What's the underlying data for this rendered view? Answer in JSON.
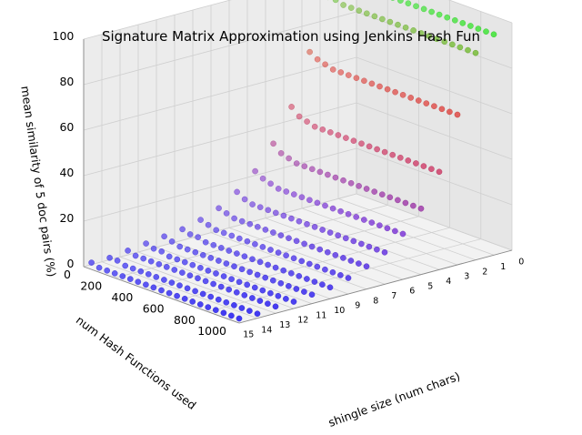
{
  "chart_data": {
    "type": "scatter",
    "projection": "3d",
    "title": "Signature Matrix Approximation using Jenkins Hash Fun",
    "xlabel": "shingle size (num chars)",
    "ylabel": "num Hash Functions used",
    "zlabel": "mean similarity of 5 doc pairs (%)",
    "x_ticks": [
      "0",
      "1",
      "2",
      "3",
      "4",
      "5",
      "6",
      "7",
      "8",
      "9",
      "10",
      "11",
      "12",
      "13",
      "14",
      "15"
    ],
    "y_ticks": [
      "0",
      "200",
      "400",
      "600",
      "800",
      "1000"
    ],
    "z_ticks": [
      "0",
      "20",
      "40",
      "60",
      "80",
      "100"
    ],
    "xlim": [
      0,
      15
    ],
    "ylim": [
      0,
      1000
    ],
    "zlim": [
      0,
      100
    ],
    "grid": true,
    "legend": "none",
    "color_encoding": "color shifts from green (high similarity) through red/purple to blue (low similarity)",
    "hash_function_counts": [
      50,
      100,
      150,
      200,
      250,
      300,
      350,
      400,
      450,
      500,
      550,
      600,
      650,
      700,
      750,
      800,
      850,
      900,
      950,
      1000
    ],
    "series": [
      {
        "shingle_size": 1,
        "similarity": [
          98,
          97,
          97,
          97,
          97,
          97,
          97,
          97,
          97,
          97,
          97,
          97,
          97,
          97,
          97,
          97,
          97,
          97,
          97,
          97
        ]
      },
      {
        "shingle_size": 2,
        "similarity": [
          92,
          92,
          91,
          91,
          91,
          91,
          91,
          91,
          91,
          91,
          91,
          91,
          91,
          91,
          91,
          91,
          91,
          91,
          91,
          91
        ]
      },
      {
        "shingle_size": 3,
        "similarity": [
          70,
          68,
          67,
          66,
          66,
          66,
          66,
          66,
          66,
          66,
          66,
          66,
          66,
          66,
          66,
          66,
          66,
          66,
          66,
          66
        ]
      },
      {
        "shingle_size": 4,
        "similarity": [
          48,
          45,
          44,
          43,
          43,
          43,
          43,
          43,
          43,
          43,
          43,
          43,
          43,
          43,
          43,
          43,
          43,
          43,
          43,
          43
        ]
      },
      {
        "shingle_size": 5,
        "similarity": [
          34,
          31,
          30,
          29,
          29,
          29,
          29,
          29,
          29,
          29,
          29,
          29,
          29,
          29,
          29,
          29,
          29,
          29,
          29,
          29
        ]
      },
      {
        "shingle_size": 6,
        "similarity": [
          24,
          22,
          21,
          20,
          20,
          20,
          20,
          20,
          20,
          20,
          20,
          20,
          20,
          20,
          20,
          20,
          20,
          20,
          20,
          20
        ]
      },
      {
        "shingle_size": 7,
        "similarity": [
          17,
          15,
          14,
          14,
          14,
          14,
          14,
          14,
          14,
          14,
          14,
          14,
          14,
          14,
          14,
          14,
          14,
          14,
          14,
          14
        ]
      },
      {
        "shingle_size": 8,
        "similarity": [
          12,
          11,
          10,
          10,
          10,
          10,
          10,
          10,
          10,
          10,
          10,
          10,
          10,
          10,
          10,
          10,
          10,
          10,
          10,
          10
        ]
      },
      {
        "shingle_size": 9,
        "similarity": [
          9,
          8,
          7,
          7,
          7,
          7,
          7,
          7,
          7,
          7,
          7,
          7,
          7,
          7,
          7,
          7,
          7,
          7,
          7,
          7
        ]
      },
      {
        "shingle_size": 10,
        "similarity": [
          7,
          6,
          6,
          5,
          5,
          5,
          5,
          5,
          5,
          5,
          5,
          5,
          5,
          5,
          5,
          5,
          5,
          5,
          5,
          5
        ]
      },
      {
        "shingle_size": 11,
        "similarity": [
          6,
          5,
          4,
          4,
          4,
          4,
          4,
          4,
          4,
          4,
          4,
          4,
          4,
          4,
          4,
          4,
          4,
          4,
          4,
          4
        ]
      },
      {
        "shingle_size": 12,
        "similarity": [
          5,
          4,
          4,
          3,
          3,
          3,
          3,
          3,
          3,
          3,
          3,
          3,
          3,
          3,
          3,
          3,
          3,
          3,
          3,
          3
        ]
      },
      {
        "shingle_size": 13,
        "similarity": [
          4,
          3,
          3,
          3,
          3,
          3,
          3,
          3,
          3,
          3,
          3,
          3,
          3,
          3,
          3,
          3,
          3,
          3,
          3,
          3
        ]
      },
      {
        "shingle_size": 14,
        "similarity": [
          3,
          3,
          2,
          2,
          2,
          2,
          2,
          2,
          2,
          2,
          2,
          2,
          2,
          2,
          2,
          2,
          2,
          2,
          2,
          2
        ]
      },
      {
        "shingle_size": 15,
        "similarity": [
          3,
          2,
          2,
          2,
          2,
          2,
          2,
          2,
          2,
          2,
          2,
          2,
          2,
          2,
          2,
          2,
          2,
          2,
          2,
          2
        ]
      }
    ]
  }
}
